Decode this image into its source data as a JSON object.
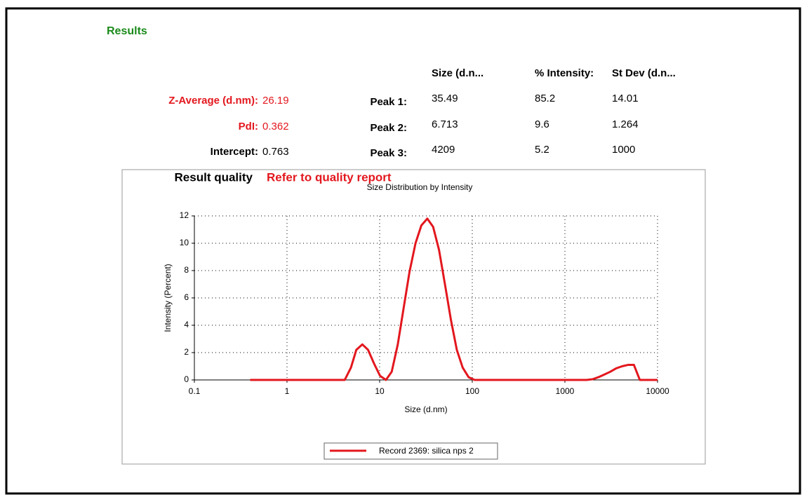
{
  "header": {
    "title": "Results"
  },
  "summary": [
    {
      "label": "Z-Average (d.nm):",
      "value": 26.19,
      "color": "#e3171e"
    },
    {
      "label": "PdI:",
      "value": 0.362,
      "color": "#e3171e"
    },
    {
      "label": "Intercept:",
      "value": 0.763,
      "color": "#000000"
    }
  ],
  "peaks": {
    "columns": [
      "Size (d.n...",
      "% Intensity:",
      "St Dev (d.n..."
    ],
    "rows": [
      {
        "label": "Peak 1:",
        "values": [
          35.49,
          85.2,
          14.01
        ]
      },
      {
        "label": "Peak 2:",
        "values": [
          6.713,
          9.6,
          1.264
        ]
      },
      {
        "label": "Peak 3:",
        "values": [
          4209,
          5.2,
          1000
        ]
      }
    ]
  },
  "quality": {
    "label": "Result quality",
    "value": "Refer to quality report"
  },
  "chart_data": {
    "type": "line",
    "title": "Size Distribution by Intensity",
    "xlabel": "Size (d.nm)",
    "ylabel": "Intensity (Percent)",
    "xlog": true,
    "xlim": [
      0.1,
      10000
    ],
    "xticks": [
      0.1,
      1,
      10,
      100,
      1000,
      10000
    ],
    "ylim": [
      0,
      12
    ],
    "yticks": [
      0,
      2,
      4,
      6,
      8,
      10,
      12
    ],
    "grid": true,
    "legend": "bottom",
    "series": [
      {
        "name": "Record 2369: silica nps 2",
        "color": "#e3171e",
        "x": [
          0.4,
          4.2,
          4.9,
          5.6,
          6.5,
          7.5,
          8.7,
          10.1,
          11.7,
          13.5,
          15.7,
          18.2,
          21,
          24.4,
          28.2,
          32.7,
          37.8,
          43.8,
          50.7,
          58.8,
          68.1,
          78.8,
          91.3,
          106,
          1720,
          1990,
          2300,
          2670,
          3090,
          3580,
          4150,
          4800,
          5560,
          6440,
          10000
        ],
        "values": [
          0,
          0,
          0.9,
          2.2,
          2.6,
          2.2,
          1.2,
          0.3,
          0,
          0.6,
          2.6,
          5.3,
          7.9,
          10,
          11.3,
          11.8,
          11.2,
          9.5,
          7,
          4.4,
          2.2,
          0.9,
          0.2,
          0,
          0,
          0.05,
          0.2,
          0.4,
          0.6,
          0.85,
          1.0,
          1.1,
          1.1,
          0,
          0
        ]
      }
    ]
  }
}
